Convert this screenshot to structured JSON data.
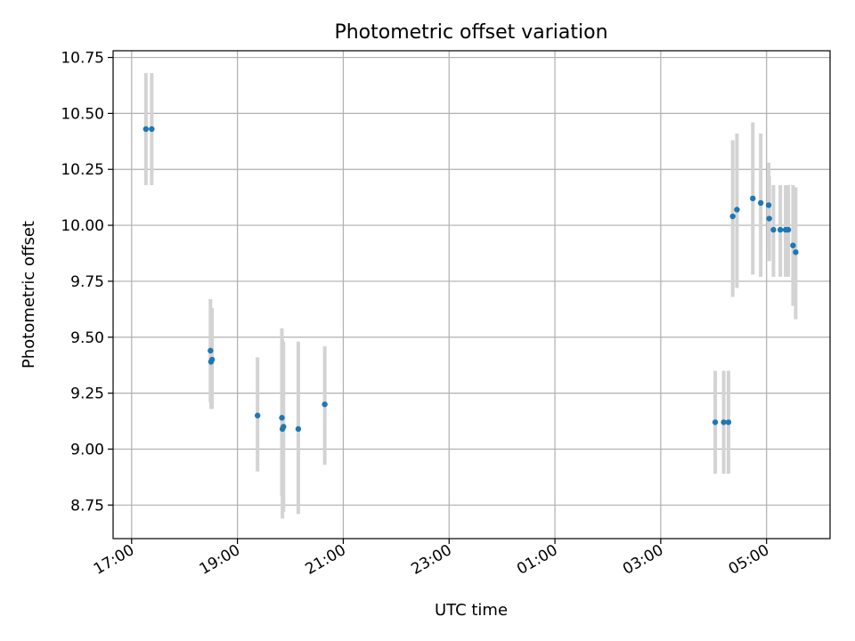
{
  "chart_data": {
    "type": "scatter",
    "title": "Photometric offset variation",
    "xlabel": "UTC time",
    "ylabel": "Photometric offset",
    "x_axis": {
      "unit": "hours since 17:00 UTC",
      "range": [
        -0.35,
        13.2
      ],
      "ticks": [
        {
          "value": 0,
          "label": "17:00"
        },
        {
          "value": 2,
          "label": "19:00"
        },
        {
          "value": 4,
          "label": "21:00"
        },
        {
          "value": 6,
          "label": "23:00"
        },
        {
          "value": 8,
          "label": "01:00"
        },
        {
          "value": 10,
          "label": "03:00"
        },
        {
          "value": 12,
          "label": "05:00"
        }
      ]
    },
    "y_axis": {
      "range": [
        8.6,
        10.78
      ],
      "ticks": [
        {
          "value": 8.75,
          "label": "8.75"
        },
        {
          "value": 9.0,
          "label": "9.00"
        },
        {
          "value": 9.25,
          "label": "9.25"
        },
        {
          "value": 9.5,
          "label": "9.50"
        },
        {
          "value": 9.75,
          "label": "9.75"
        },
        {
          "value": 10.0,
          "label": "10.00"
        },
        {
          "value": 10.25,
          "label": "10.25"
        },
        {
          "value": 10.5,
          "label": "10.50"
        },
        {
          "value": 10.75,
          "label": "10.75"
        }
      ]
    },
    "grid": true,
    "colors": {
      "point": "#1f77b4",
      "errorbar": "#d3d3d3",
      "grid": "#b0b0b0"
    },
    "points": [
      {
        "x": 0.27,
        "y": 10.43,
        "lo": 10.18,
        "hi": 10.68
      },
      {
        "x": 0.38,
        "y": 10.43,
        "lo": 10.18,
        "hi": 10.68
      },
      {
        "x": 1.49,
        "y": 9.44,
        "lo": 9.21,
        "hi": 9.67
      },
      {
        "x": 1.5,
        "y": 9.39,
        "lo": 9.18,
        "hi": 9.6
      },
      {
        "x": 1.52,
        "y": 9.4,
        "lo": 9.18,
        "hi": 9.63
      },
      {
        "x": 2.38,
        "y": 9.15,
        "lo": 8.9,
        "hi": 9.41
      },
      {
        "x": 2.84,
        "y": 9.14,
        "lo": 8.79,
        "hi": 9.54
      },
      {
        "x": 2.85,
        "y": 9.09,
        "lo": 8.69,
        "hi": 9.49
      },
      {
        "x": 2.87,
        "y": 9.1,
        "lo": 8.72,
        "hi": 9.48
      },
      {
        "x": 3.15,
        "y": 9.09,
        "lo": 8.71,
        "hi": 9.48
      },
      {
        "x": 3.65,
        "y": 9.2,
        "lo": 8.93,
        "hi": 9.46
      },
      {
        "x": 11.03,
        "y": 9.12,
        "lo": 8.89,
        "hi": 9.35
      },
      {
        "x": 11.19,
        "y": 9.12,
        "lo": 8.89,
        "hi": 9.35
      },
      {
        "x": 11.28,
        "y": 9.12,
        "lo": 8.89,
        "hi": 9.35
      },
      {
        "x": 11.36,
        "y": 10.04,
        "lo": 9.68,
        "hi": 10.38
      },
      {
        "x": 11.44,
        "y": 10.07,
        "lo": 9.72,
        "hi": 10.41
      },
      {
        "x": 11.74,
        "y": 10.12,
        "lo": 9.78,
        "hi": 10.46
      },
      {
        "x": 11.89,
        "y": 10.1,
        "lo": 9.77,
        "hi": 10.41
      },
      {
        "x": 12.04,
        "y": 10.09,
        "lo": 9.9,
        "hi": 10.28
      },
      {
        "x": 12.05,
        "y": 10.03,
        "lo": 9.84,
        "hi": 10.22
      },
      {
        "x": 12.13,
        "y": 9.98,
        "lo": 9.77,
        "hi": 10.18
      },
      {
        "x": 12.26,
        "y": 9.98,
        "lo": 9.77,
        "hi": 10.18
      },
      {
        "x": 12.36,
        "y": 9.98,
        "lo": 9.77,
        "hi": 10.18
      },
      {
        "x": 12.41,
        "y": 9.98,
        "lo": 9.77,
        "hi": 10.18
      },
      {
        "x": 12.5,
        "y": 9.91,
        "lo": 9.64,
        "hi": 10.18
      },
      {
        "x": 12.55,
        "y": 9.88,
        "lo": 9.58,
        "hi": 10.17
      }
    ]
  }
}
